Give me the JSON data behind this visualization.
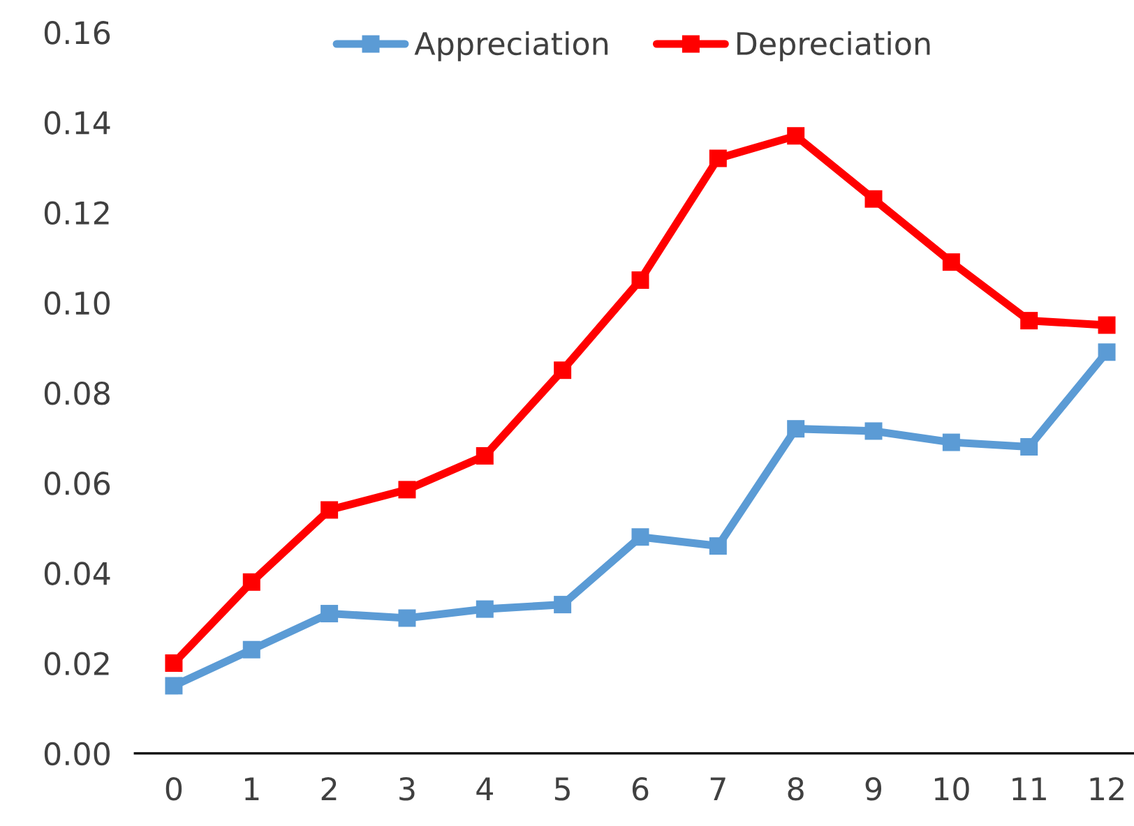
{
  "chart_data": {
    "type": "line",
    "categories": [
      "0",
      "1",
      "2",
      "3",
      "4",
      "5",
      "6",
      "7",
      "8",
      "9",
      "10",
      "11",
      "12"
    ],
    "series": [
      {
        "name": "Appreciation",
        "color": "#5b9bd5",
        "values": [
          0.015,
          0.023,
          0.031,
          0.03,
          0.032,
          0.033,
          0.048,
          0.046,
          0.072,
          0.0715,
          0.069,
          0.068,
          0.089
        ]
      },
      {
        "name": "Depreciation",
        "color": "#ff0000",
        "values": [
          0.02,
          0.038,
          0.054,
          0.0585,
          0.066,
          0.085,
          0.105,
          0.132,
          0.137,
          0.123,
          0.109,
          0.096,
          0.095
        ]
      }
    ],
    "ylim": [
      0,
      0.16
    ],
    "yticks": [
      {
        "value": 0,
        "label": "0.00"
      },
      {
        "value": 0.02,
        "label": "0.02"
      },
      {
        "value": 0.04,
        "label": "0.04"
      },
      {
        "value": 0.06,
        "label": "0.06"
      },
      {
        "value": 0.08,
        "label": "0.08"
      },
      {
        "value": 0.1,
        "label": "0.10"
      },
      {
        "value": 0.12,
        "label": "0.12"
      },
      {
        "value": 0.14,
        "label": "0.14"
      },
      {
        "value": 0.16,
        "label": "0.16"
      }
    ],
    "grid": false,
    "legend": "top",
    "marker": "square",
    "line_style": "solid"
  }
}
